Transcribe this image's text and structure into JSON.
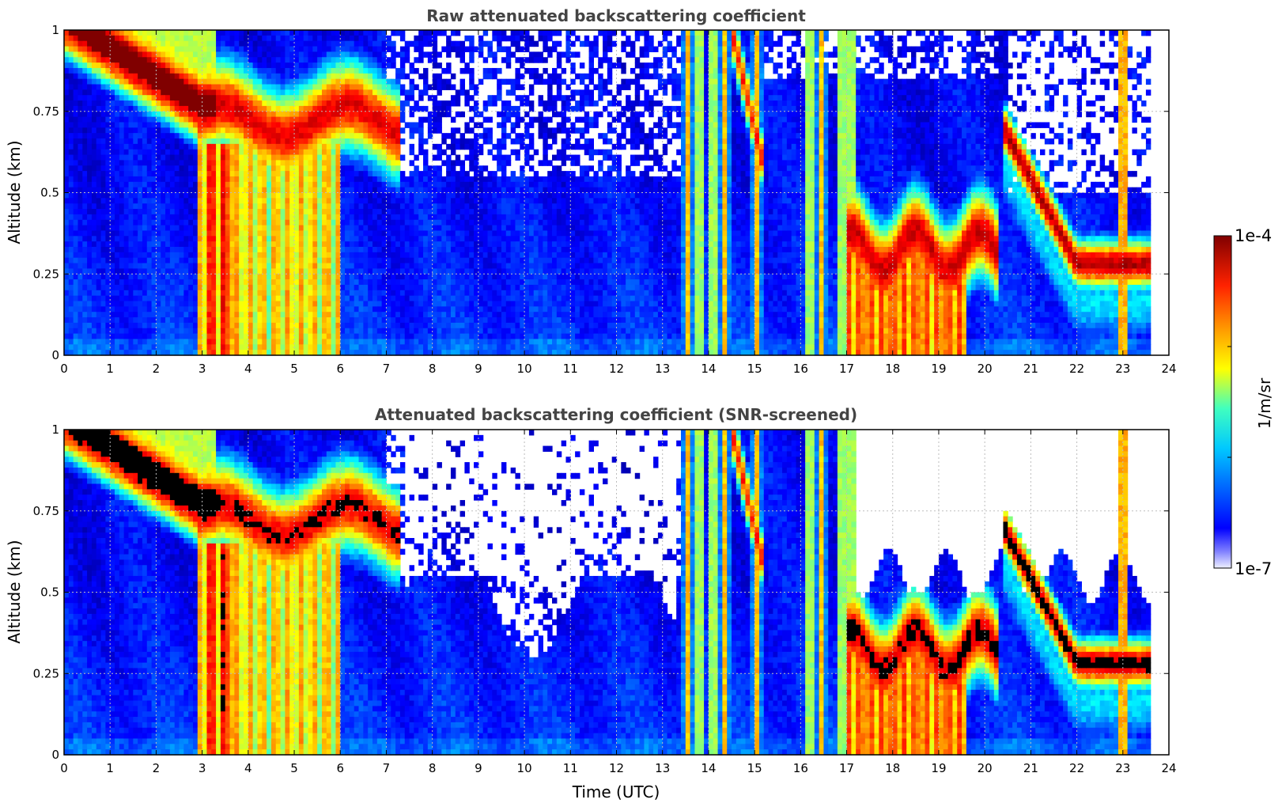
{
  "chart_data": [
    {
      "type": "heatmap",
      "title": "Raw attenuated backscattering coefficient",
      "xlabel": "",
      "ylabel": "Altitude (km)",
      "xlim": [
        0,
        24
      ],
      "ylim": [
        0,
        1
      ],
      "x_ticks": [
        "0",
        "1",
        "2",
        "3",
        "4",
        "5",
        "6",
        "7",
        "8",
        "9",
        "10",
        "11",
        "12",
        "13",
        "14",
        "15",
        "16",
        "17",
        "18",
        "19",
        "20",
        "21",
        "22",
        "23",
        "24"
      ],
      "y_ticks": [
        "0",
        "0.25",
        "0.5",
        "0.75",
        "1"
      ],
      "grid": true,
      "screened": false
    },
    {
      "type": "heatmap",
      "title": "Attenuated backscattering coefficient (SNR-screened)",
      "xlabel": "Time (UTC)",
      "ylabel": "Altitude (km)",
      "xlim": [
        0,
        24
      ],
      "ylim": [
        0,
        1
      ],
      "x_ticks": [
        "0",
        "1",
        "2",
        "3",
        "4",
        "5",
        "6",
        "7",
        "8",
        "9",
        "10",
        "11",
        "12",
        "13",
        "14",
        "15",
        "16",
        "17",
        "18",
        "19",
        "20",
        "21",
        "22",
        "23",
        "24"
      ],
      "y_ticks": [
        "0",
        "0.25",
        "0.5",
        "0.75",
        "1"
      ],
      "grid": true,
      "screened": true
    }
  ],
  "colorbar": {
    "label": "1/m/sr",
    "max_label": "1e-4",
    "min_label": "1e-7",
    "scale": "log",
    "colormap": "jet"
  },
  "colors": {
    "grid": "#bdbdbd",
    "title": "#444444",
    "saturated_screened": "#000000"
  },
  "features": {
    "layers": [
      {
        "name": "early-descending-layer",
        "time_start": 0.1,
        "time_end": 3.2,
        "top_alt_start": 1.0,
        "top_alt_end": 0.75
      },
      {
        "name": "mid-morning-layer",
        "time_start": 3.0,
        "time_end": 7.3,
        "center_alt": 0.72
      },
      {
        "name": "afternoon-layer",
        "time_start": 17.0,
        "time_end": 20.3,
        "center_alt": 0.3
      },
      {
        "name": "evening-layer",
        "time_start": 20.4,
        "time_end": 23.65,
        "center_alt_start": 0.7,
        "center_alt_end": 0.28
      }
    ],
    "data_end_time": 23.65
  }
}
